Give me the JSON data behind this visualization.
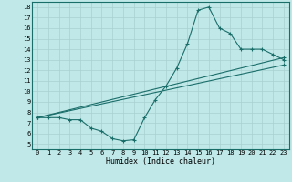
{
  "bg_color": "#c0e8e8",
  "line_color": "#1a6e6a",
  "grid_color": "#a8d0d0",
  "xlabel": "Humidex (Indice chaleur)",
  "xlim": [
    -0.5,
    23.5
  ],
  "ylim": [
    4.5,
    18.5
  ],
  "xticks": [
    0,
    1,
    2,
    3,
    4,
    5,
    6,
    7,
    8,
    9,
    10,
    11,
    12,
    13,
    14,
    15,
    16,
    17,
    18,
    19,
    20,
    21,
    22,
    23
  ],
  "yticks": [
    5,
    6,
    7,
    8,
    9,
    10,
    11,
    12,
    13,
    14,
    15,
    16,
    17,
    18
  ],
  "curve1_x": [
    0,
    1,
    2,
    3,
    4,
    5,
    6,
    7,
    8,
    9,
    10,
    11,
    12,
    13,
    14,
    15,
    16,
    17,
    18,
    19,
    20,
    21,
    22,
    23
  ],
  "curve1_y": [
    7.5,
    7.5,
    7.5,
    7.3,
    7.3,
    6.5,
    6.2,
    5.5,
    5.3,
    5.4,
    7.5,
    9.2,
    10.5,
    12.2,
    14.5,
    17.7,
    18.0,
    16.0,
    15.5,
    14.0,
    14.0,
    14.0,
    13.5,
    13.0
  ],
  "line2_x": [
    0,
    23
  ],
  "line2_y": [
    7.5,
    13.2
  ],
  "line3_x": [
    0,
    23
  ],
  "line3_y": [
    7.5,
    12.5
  ],
  "xlabel_fontsize": 6,
  "tick_fontsize": 5
}
